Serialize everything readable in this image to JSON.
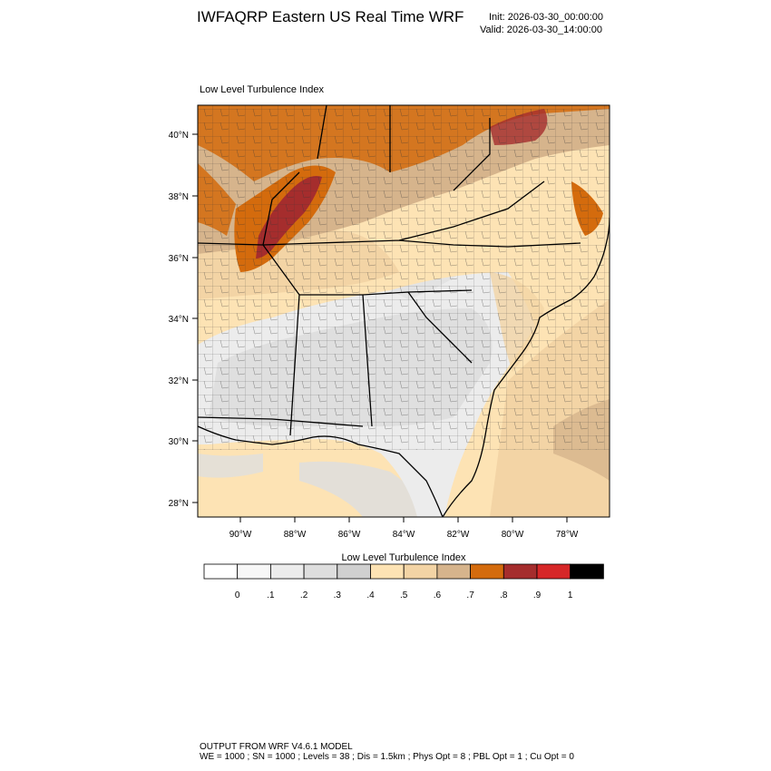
{
  "header": {
    "title": "IWFAQRP Eastern US Real Time WRF",
    "init": "Init: 2026-03-30_00:00:00",
    "valid": "Valid: 2026-03-30_14:00:00"
  },
  "plot": {
    "title": "Low Level Turbulence Index",
    "lat_ticks": [
      "40°N",
      "38°N",
      "36°N",
      "34°N",
      "32°N",
      "30°N",
      "28°N"
    ],
    "lon_ticks": [
      "90°W",
      "88°W",
      "86°W",
      "84°W",
      "82°W",
      "80°W",
      "78°W"
    ]
  },
  "colorbar": {
    "title": "Low Level Turbulence Index",
    "labels": [
      "0",
      ".1",
      ".2",
      ".3",
      ".4",
      ".5",
      ".6",
      ".7",
      ".8",
      ".9",
      "1"
    ],
    "colors": [
      "#ffffff",
      "#f7f7f7",
      "#ececec",
      "#dedede",
      "#d0d0d0",
      "#fde3b4",
      "#f3d4a5",
      "#d6b48c",
      "#d46b0d",
      "#a52d2d",
      "#d62728",
      "#000000"
    ]
  },
  "footer": {
    "line1": "OUTPUT FROM WRF V4.6.1 MODEL",
    "line2": "WE = 1000 ; SN = 1000 ; Levels = 38 ; Dis = 1.5km ; Phys Opt = 8 ; PBL Opt = 1 ; Cu Opt = 0"
  }
}
